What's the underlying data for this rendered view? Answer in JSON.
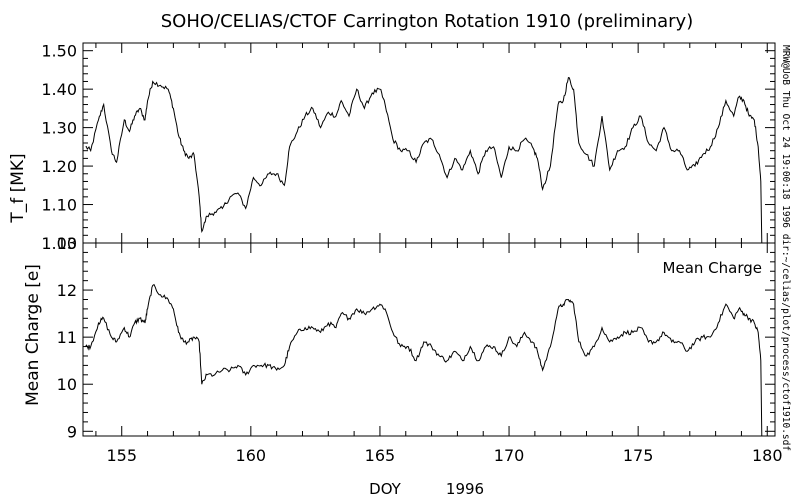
{
  "chart_data": [
    {
      "type": "line",
      "title": "SOHO/CELIAS/CTOF Carrington Rotation 1910 (preliminary)",
      "ylabel": "T_f [MK]",
      "xlim": [
        153.5,
        180.3
      ],
      "ylim": [
        1.0,
        1.52
      ],
      "yticks": [
        "1.00",
        "1.10",
        "1.20",
        "1.30",
        "1.40",
        "1.50"
      ],
      "ytick_values": [
        1.0,
        1.1,
        1.2,
        1.3,
        1.4,
        1.5
      ],
      "series": [
        {
          "x": [
            153.6,
            153.8,
            154.1,
            154.3,
            154.6,
            154.8,
            155.1,
            155.3,
            155.5,
            155.7,
            155.9,
            156.0,
            156.2,
            156.5,
            156.8,
            157.0,
            157.2,
            157.4,
            157.6,
            157.8,
            158.0,
            158.1,
            158.3,
            158.6,
            158.9,
            159.2,
            159.5,
            159.8,
            160.1,
            160.4,
            160.7,
            161.0,
            161.3,
            161.5,
            161.8,
            162.1,
            162.4,
            162.7,
            163.0,
            163.3,
            163.5,
            163.8,
            164.1,
            164.4,
            164.7,
            165.0,
            165.2,
            165.5,
            165.8,
            166.1,
            166.4,
            166.7,
            167.0,
            167.3,
            167.6,
            167.9,
            168.2,
            168.5,
            168.8,
            169.1,
            169.4,
            169.7,
            170.0,
            170.3,
            170.6,
            170.9,
            171.1,
            171.3,
            171.6,
            171.9,
            172.1,
            172.3,
            172.5,
            172.7,
            173.0,
            173.3,
            173.6,
            173.9,
            174.2,
            174.5,
            174.8,
            175.1,
            175.4,
            175.7,
            176.0,
            176.3,
            176.6,
            176.9,
            177.2,
            177.5,
            177.8,
            178.1,
            178.4,
            178.7,
            178.9,
            179.1,
            179.3,
            179.5,
            179.65,
            179.75
          ],
          "values": [
            1.25,
            1.24,
            1.32,
            1.36,
            1.24,
            1.21,
            1.32,
            1.29,
            1.33,
            1.35,
            1.32,
            1.37,
            1.42,
            1.41,
            1.4,
            1.35,
            1.28,
            1.24,
            1.22,
            1.23,
            1.12,
            1.03,
            1.07,
            1.08,
            1.09,
            1.12,
            1.13,
            1.09,
            1.17,
            1.15,
            1.18,
            1.18,
            1.15,
            1.25,
            1.29,
            1.33,
            1.35,
            1.3,
            1.34,
            1.33,
            1.37,
            1.33,
            1.4,
            1.35,
            1.39,
            1.4,
            1.36,
            1.27,
            1.24,
            1.24,
            1.21,
            1.26,
            1.27,
            1.23,
            1.17,
            1.22,
            1.19,
            1.24,
            1.18,
            1.24,
            1.25,
            1.17,
            1.25,
            1.24,
            1.27,
            1.25,
            1.22,
            1.14,
            1.2,
            1.36,
            1.37,
            1.43,
            1.4,
            1.26,
            1.23,
            1.2,
            1.33,
            1.19,
            1.24,
            1.25,
            1.3,
            1.33,
            1.26,
            1.24,
            1.3,
            1.24,
            1.24,
            1.19,
            1.2,
            1.23,
            1.25,
            1.3,
            1.37,
            1.33,
            1.38,
            1.37,
            1.33,
            1.32,
            1.25,
            1.16
          ]
        }
      ]
    },
    {
      "type": "line",
      "ylabel": "Mean Charge [e]",
      "annotation": "Mean Charge",
      "xlabel": "DOY",
      "xlabel_year": "1996",
      "xlim": [
        153.5,
        180.3
      ],
      "ylim": [
        8.9,
        13.0
      ],
      "xticks": [
        "155",
        "160",
        "165",
        "170",
        "175",
        "180"
      ],
      "xtick_values": [
        155,
        160,
        165,
        170,
        175,
        180
      ],
      "yticks": [
        "9",
        "10",
        "11",
        "12",
        "13"
      ],
      "ytick_values": [
        9,
        10,
        11,
        12,
        13
      ],
      "series": [
        {
          "x": [
            153.6,
            153.8,
            154.1,
            154.3,
            154.6,
            154.8,
            155.1,
            155.3,
            155.5,
            155.7,
            155.9,
            156.0,
            156.2,
            156.5,
            156.8,
            157.0,
            157.2,
            157.4,
            157.6,
            157.8,
            158.0,
            158.1,
            158.3,
            158.6,
            158.9,
            159.2,
            159.5,
            159.8,
            160.1,
            160.4,
            160.7,
            161.0,
            161.3,
            161.5,
            161.8,
            162.1,
            162.4,
            162.7,
            163.0,
            163.3,
            163.5,
            163.8,
            164.1,
            164.4,
            164.7,
            165.0,
            165.2,
            165.5,
            165.8,
            166.1,
            166.4,
            166.7,
            167.0,
            167.3,
            167.6,
            167.9,
            168.2,
            168.5,
            168.8,
            169.1,
            169.4,
            169.7,
            170.0,
            170.3,
            170.6,
            170.9,
            171.1,
            171.3,
            171.6,
            171.9,
            172.1,
            172.3,
            172.5,
            172.7,
            173.0,
            173.3,
            173.6,
            173.9,
            174.2,
            174.5,
            174.8,
            175.1,
            175.4,
            175.7,
            176.0,
            176.3,
            176.6,
            176.9,
            177.2,
            177.5,
            177.8,
            178.1,
            178.4,
            178.7,
            178.9,
            179.1,
            179.3,
            179.5,
            179.65,
            179.75
          ],
          "values": [
            10.8,
            10.8,
            11.3,
            11.4,
            11.0,
            10.9,
            11.2,
            11.0,
            11.3,
            11.4,
            11.3,
            11.6,
            12.1,
            11.9,
            11.8,
            11.6,
            11.1,
            10.9,
            10.9,
            11.0,
            10.9,
            10.0,
            10.2,
            10.2,
            10.3,
            10.3,
            10.4,
            10.2,
            10.4,
            10.4,
            10.4,
            10.3,
            10.4,
            10.8,
            11.1,
            11.2,
            11.2,
            11.1,
            11.3,
            11.2,
            11.5,
            11.4,
            11.6,
            11.5,
            11.6,
            11.7,
            11.6,
            11.1,
            10.8,
            10.8,
            10.5,
            10.9,
            10.8,
            10.6,
            10.5,
            10.7,
            10.5,
            10.8,
            10.5,
            10.8,
            10.8,
            10.6,
            11.0,
            10.8,
            11.1,
            10.9,
            10.7,
            10.3,
            10.8,
            11.6,
            11.7,
            11.8,
            11.7,
            10.9,
            10.6,
            10.8,
            11.2,
            10.9,
            11.0,
            11.1,
            11.1,
            11.2,
            10.9,
            10.9,
            11.1,
            10.9,
            10.9,
            10.7,
            10.9,
            11.0,
            11.0,
            11.3,
            11.7,
            11.4,
            11.6,
            11.5,
            11.4,
            11.3,
            11.1,
            10.5
          ]
        }
      ]
    }
  ],
  "sidebar_text": "MRW@UoB Thu Oct 24 19:00:18 1996  dir:~/celias/plot/process/ctof1910.sdf"
}
